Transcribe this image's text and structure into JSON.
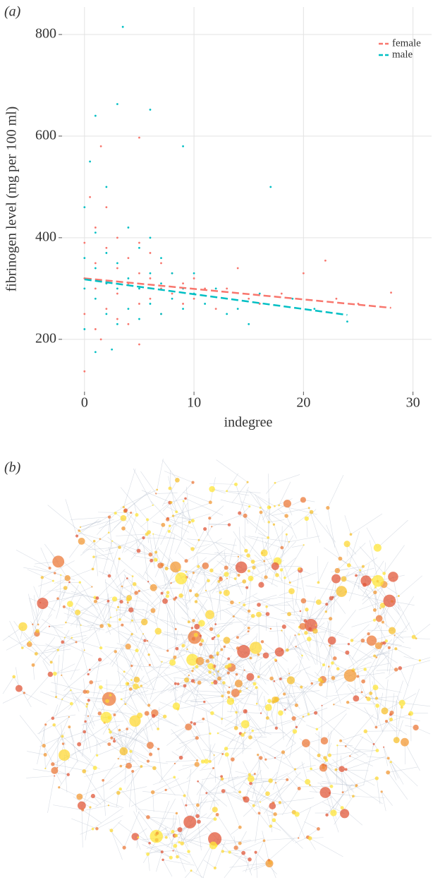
{
  "panel_labels": [
    "(a)",
    "(b)"
  ],
  "chart_data": {
    "type": "scatter",
    "x_label": "indegree",
    "y_label": "fibrinogen level (mg per 100 ml)",
    "xlim": [
      -2.05,
      31.7
    ],
    "xticks": [
      0,
      10,
      20,
      30
    ],
    "ylim": [
      97,
      854
    ],
    "yticks": [
      200,
      400,
      600,
      800
    ],
    "grid": true,
    "legend": "top-right",
    "series": [
      {
        "name": "female",
        "color": "#f8766d",
        "x": [
          0,
          0,
          0,
          0,
          0.5,
          1,
          1,
          1,
          1,
          1.5,
          2,
          2,
          2,
          2,
          3,
          3,
          3,
          3,
          4,
          4,
          4,
          5,
          5,
          5,
          5,
          6,
          6,
          6,
          7,
          7,
          7,
          8,
          8,
          9,
          9,
          10,
          10,
          11,
          12,
          13,
          14,
          15,
          16,
          18,
          20,
          22,
          23,
          25,
          28,
          1.5,
          5
        ],
        "values": [
          137,
          250,
          320,
          390,
          480,
          220,
          300,
          350,
          420,
          580,
          260,
          310,
          380,
          460,
          240,
          290,
          340,
          400,
          230,
          310,
          360,
          597,
          270,
          330,
          390,
          280,
          320,
          370,
          250,
          300,
          350,
          290,
          330,
          270,
          310,
          280,
          320,
          300,
          260,
          300,
          340,
          280,
          270,
          290,
          330,
          355,
          280,
          270,
          292,
          200,
          190
        ],
        "trend_x": [
          0,
          28
        ],
        "trend_values": [
          320,
          262
        ]
      },
      {
        "name": "male",
        "color": "#00bfc4",
        "x": [
          0,
          0,
          0,
          0,
          1,
          1,
          1,
          1,
          1,
          2,
          2,
          2,
          2,
          3,
          3,
          3,
          3,
          3.5,
          4,
          4,
          4,
          5,
          5,
          5,
          6,
          6,
          6,
          6,
          7,
          7,
          7,
          8,
          8,
          9,
          9,
          9,
          10,
          10,
          11,
          12,
          13,
          14,
          15,
          16,
          17,
          19,
          21,
          24,
          0.5,
          2.5
        ],
        "values": [
          220,
          300,
          360,
          460,
          175,
          280,
          340,
          410,
          640,
          250,
          310,
          370,
          500,
          230,
          300,
          350,
          663,
          815,
          260,
          320,
          420,
          240,
          300,
          380,
          652,
          270,
          330,
          400,
          250,
          310,
          360,
          280,
          330,
          580,
          260,
          300,
          290,
          330,
          270,
          300,
          250,
          260,
          230,
          290,
          500,
          280,
          260,
          235,
          550,
          180
        ],
        "trend_x": [
          0,
          24
        ],
        "trend_values": [
          318,
          248
        ]
      }
    ]
  }
}
